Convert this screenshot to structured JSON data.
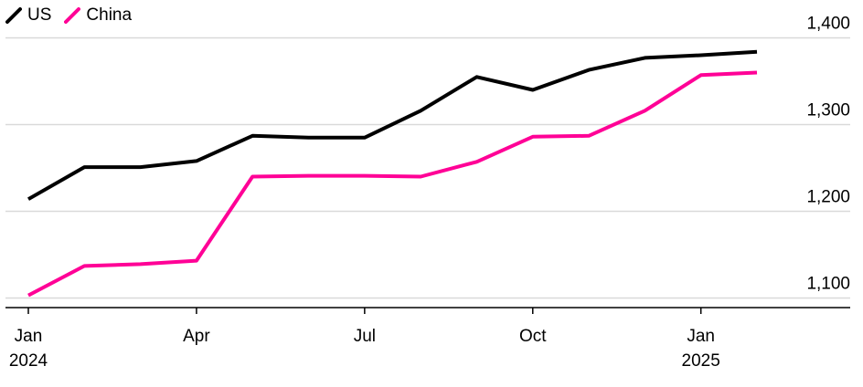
{
  "legend": [
    {
      "label": "US",
      "color": "#000000"
    },
    {
      "label": "China",
      "color": "#ff0096"
    }
  ],
  "chart_data": {
    "type": "line",
    "x": [
      "2024-01",
      "2024-02",
      "2024-03",
      "2024-04",
      "2024-05",
      "2024-06",
      "2024-07",
      "2024-08",
      "2024-09",
      "2024-10",
      "2024-11",
      "2024-12",
      "2025-01",
      "2025-02"
    ],
    "series": [
      {
        "name": "US",
        "color": "#000000",
        "values": [
          1214,
          1251,
          1251,
          1258,
          1287,
          1285,
          1285,
          1316,
          1355,
          1340,
          1363,
          1377,
          1380,
          1384
        ]
      },
      {
        "name": "China",
        "color": "#ff0096",
        "values": [
          1103,
          1137,
          1139,
          1143,
          1240,
          1241,
          1241,
          1240,
          1257,
          1286,
          1287,
          1316,
          1357,
          1360
        ]
      }
    ],
    "ylim": [
      1090,
      1410
    ],
    "y_ticks": [
      1100,
      1200,
      1300,
      1400
    ],
    "y_tick_labels": [
      "1,100",
      "1,200",
      "1,300",
      "1,400"
    ],
    "x_ticks": [
      {
        "x": "2024-01",
        "label": "Jan",
        "sublabel": "2024"
      },
      {
        "x": "2024-04",
        "label": "Apr",
        "sublabel": ""
      },
      {
        "x": "2024-07",
        "label": "Jul",
        "sublabel": ""
      },
      {
        "x": "2024-10",
        "label": "Oct",
        "sublabel": ""
      },
      {
        "x": "2025-01",
        "label": "Jan",
        "sublabel": "2025"
      }
    ],
    "y_axis_position": "right",
    "grid": true,
    "legend_position": "top-left"
  }
}
